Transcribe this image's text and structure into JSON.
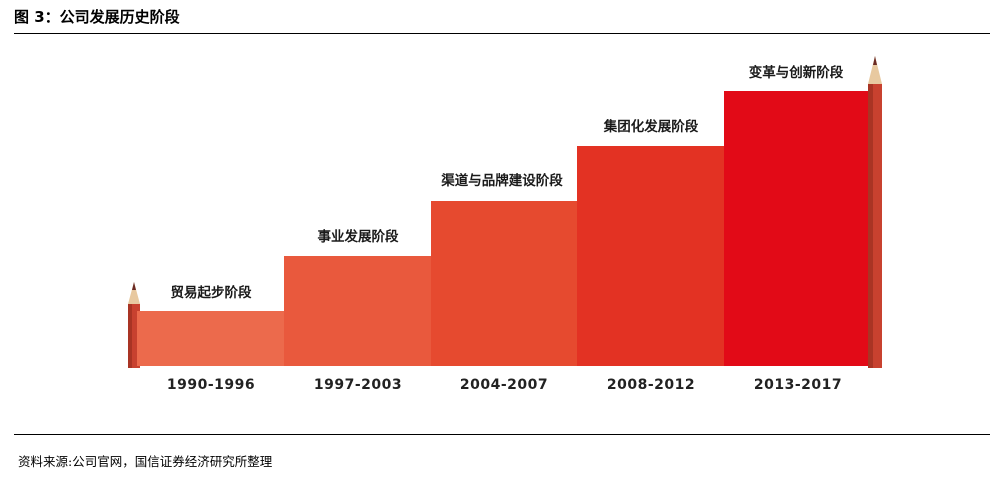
{
  "figure": {
    "title": "图 3：公司发展历史阶段",
    "source": "资料来源:公司官网，国信证券经济研究所整理"
  },
  "stages": [
    {
      "name": "贸易起步阶段",
      "period": "1990-1996",
      "color": "#ec6a4c",
      "level": 1
    },
    {
      "name": "事业发展阶段",
      "period": "1997-2003",
      "color": "#e9593d",
      "level": 2
    },
    {
      "name": "渠道与品牌建设阶段",
      "period": "2004-2007",
      "color": "#e64a2f",
      "level": 3
    },
    {
      "name": "集团化发展阶段",
      "period": "2008-2012",
      "color": "#e33223",
      "level": 4
    },
    {
      "name": "变革与创新阶段",
      "period": "2013-2017",
      "color": "#e20a17",
      "level": 5
    }
  ],
  "colors": {
    "pencil_body": "#c8412f",
    "pencil_wood": "#e8c9a0",
    "pencil_tip": "#6b2b24"
  }
}
